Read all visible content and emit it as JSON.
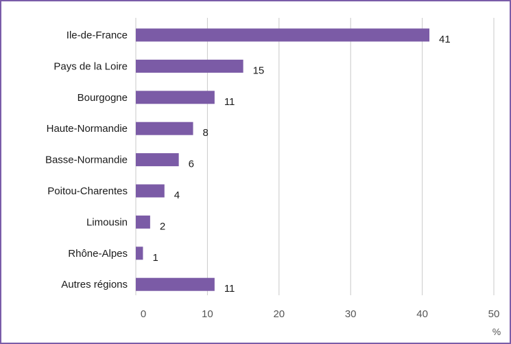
{
  "chart_data": {
    "type": "bar",
    "orientation": "horizontal",
    "categories": [
      "Ile-de-France",
      "Pays de la Loire",
      "Bourgogne",
      "Haute-Normandie",
      "Basse-Normandie",
      "Poitou-Charentes",
      "Limousin",
      "Rhône-Alpes",
      "Autres régions"
    ],
    "values": [
      41,
      15,
      11,
      8,
      6,
      4,
      2,
      1,
      11
    ],
    "data_labels": [
      "41",
      "15",
      "11",
      "8",
      "6",
      "4",
      "2",
      "1",
      "11"
    ],
    "x_ticks": [
      0,
      10,
      20,
      30,
      40,
      50
    ],
    "xlim": [
      0,
      50
    ],
    "x_unit": "%",
    "grid": "vertical",
    "bar_color": "#7b5ba6",
    "frame_color": "#7a5ca8"
  }
}
